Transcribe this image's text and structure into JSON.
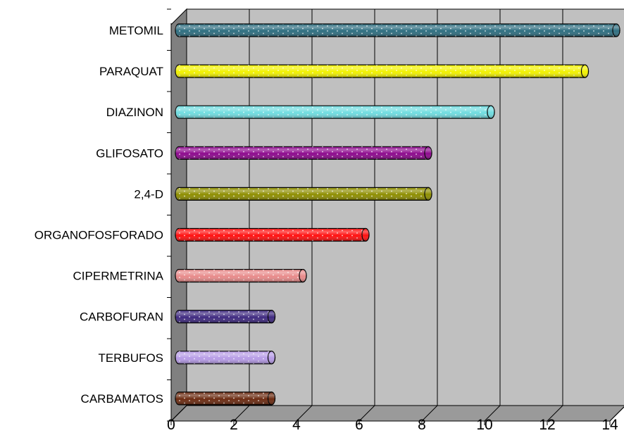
{
  "chart_data": {
    "type": "bar",
    "orientation": "horizontal",
    "style": "3d-cylinder",
    "title": "",
    "xlabel": "",
    "ylabel": "",
    "categories": [
      "METOMIL",
      "PARAQUAT",
      "DIAZINON",
      "GLIFOSATO",
      "2,4-D",
      "ORGANOFOSFORADO",
      "CIPERMETRINA",
      "CARBOFURAN",
      "TERBUFOS",
      "CARBAMATOS"
    ],
    "values": [
      14,
      13,
      10,
      8,
      8,
      6,
      4,
      3,
      3,
      3
    ],
    "colors": [
      "#2E6E80",
      "#F2F200",
      "#70DCE0",
      "#8E0A8E",
      "#8E8E00",
      "#FF1010",
      "#E88A8A",
      "#3F2A80",
      "#B69BE6",
      "#6B2A10"
    ],
    "xlim": [
      0,
      14
    ],
    "xticks": [
      0,
      2,
      4,
      6,
      8,
      10,
      12,
      14
    ],
    "xtick_labels": [
      "0",
      "2",
      "4",
      "6",
      "8",
      "10",
      "12",
      "14"
    ],
    "grid": true,
    "legend": "none",
    "plot_background": "#C0C0C0",
    "side_wall_color": "#808080"
  }
}
